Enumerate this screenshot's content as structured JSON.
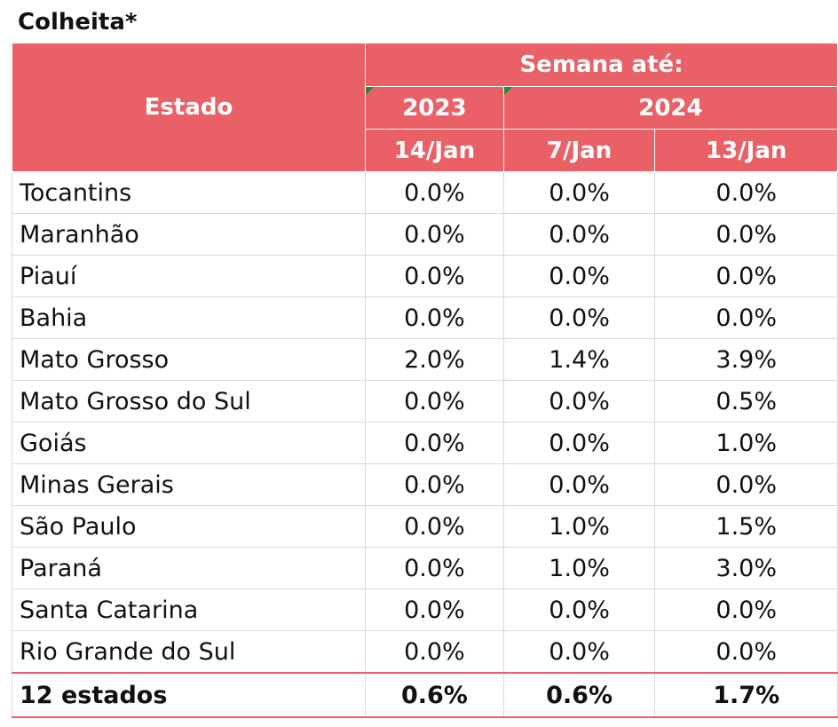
{
  "title": "Colheita*",
  "header": {
    "estado": "Estado",
    "group": "Semana até:",
    "year_2023": "2023",
    "year_2024": "2024",
    "dates": [
      "14/Jan",
      "7/Jan",
      "13/Jan"
    ]
  },
  "rows": [
    {
      "state": "Tocantins",
      "v": [
        "0.0%",
        "0.0%",
        "0.0%"
      ]
    },
    {
      "state": "Maranhão",
      "v": [
        "0.0%",
        "0.0%",
        "0.0%"
      ]
    },
    {
      "state": "Piauí",
      "v": [
        "0.0%",
        "0.0%",
        "0.0%"
      ]
    },
    {
      "state": "Bahia",
      "v": [
        "0.0%",
        "0.0%",
        "0.0%"
      ]
    },
    {
      "state": "Mato Grosso",
      "v": [
        "2.0%",
        "1.4%",
        "3.9%"
      ]
    },
    {
      "state": "Mato Grosso do Sul",
      "v": [
        "0.0%",
        "0.0%",
        "0.5%"
      ]
    },
    {
      "state": "Goiás",
      "v": [
        "0.0%",
        "0.0%",
        "1.0%"
      ]
    },
    {
      "state": "Minas Gerais",
      "v": [
        "0.0%",
        "0.0%",
        "0.0%"
      ]
    },
    {
      "state": "São Paulo",
      "v": [
        "0.0%",
        "1.0%",
        "1.5%"
      ]
    },
    {
      "state": "Paraná",
      "v": [
        "0.0%",
        "1.0%",
        "3.0%"
      ]
    },
    {
      "state": "Santa Catarina",
      "v": [
        "0.0%",
        "0.0%",
        "0.0%"
      ]
    },
    {
      "state": "Rio Grande do Sul",
      "v": [
        "0.0%",
        "0.0%",
        "0.0%"
      ]
    }
  ],
  "total": {
    "state": "12 estados",
    "v": [
      "0.6%",
      "0.6%",
      "1.7%"
    ]
  },
  "colors": {
    "header_bg": "#e96167",
    "header_text": "#ffffff",
    "flag": "#1a8f2a"
  }
}
